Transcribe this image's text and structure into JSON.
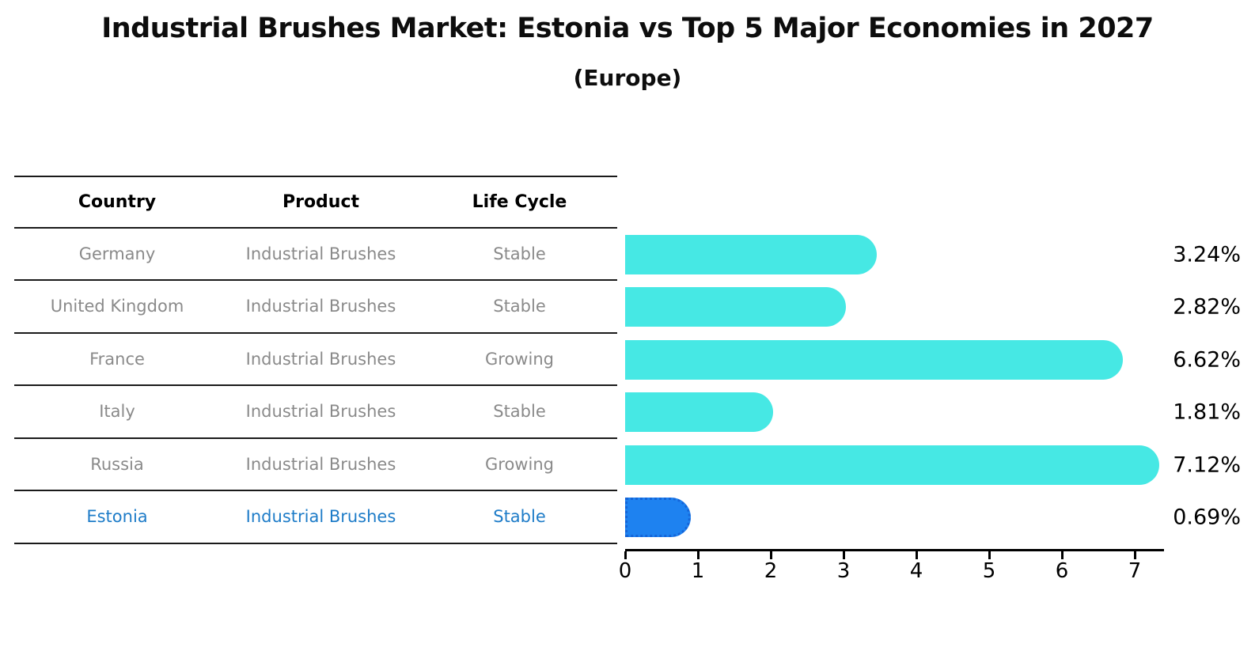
{
  "title": "Industrial Brushes Market: Estonia vs Top 5 Major Economies in 2027",
  "subtitle": "(Europe)",
  "table": {
    "columns": [
      "Country",
      "Product",
      "Life Cycle"
    ],
    "rows": [
      {
        "country": "Germany",
        "product": "Industrial Brushes",
        "life_cycle": "Stable",
        "highlight": false
      },
      {
        "country": "United Kingdom",
        "product": "Industrial Brushes",
        "life_cycle": "Stable",
        "highlight": false
      },
      {
        "country": "France",
        "product": "Industrial Brushes",
        "life_cycle": "Growing",
        "highlight": false
      },
      {
        "country": "Italy",
        "product": "Industrial Brushes",
        "life_cycle": "Stable",
        "highlight": false
      },
      {
        "country": "Russia",
        "product": "Industrial Brushes",
        "life_cycle": "Growing",
        "highlight": false
      },
      {
        "country": "Estonia",
        "product": "Industrial Brushes",
        "life_cycle": "Stable",
        "highlight": true
      }
    ]
  },
  "chart_data": {
    "type": "bar",
    "orientation": "horizontal",
    "title": "Industrial Brushes Market: Estonia vs Top 5 Major Economies in 2027",
    "subtitle": "(Europe)",
    "categories": [
      "Germany",
      "United Kingdom",
      "France",
      "Italy",
      "Russia",
      "Estonia"
    ],
    "values": [
      3.24,
      2.82,
      6.62,
      1.81,
      7.12,
      0.69
    ],
    "value_labels": [
      "3.24%",
      "2.82%",
      "6.62%",
      "1.81%",
      "7.12%",
      "0.69%"
    ],
    "x_ticks": [
      0,
      1,
      2,
      3,
      4,
      5,
      6,
      7
    ],
    "xlim": [
      0,
      7.4
    ],
    "grid": false,
    "legend": "none",
    "highlight_index": 5,
    "colors": {
      "bar": "#46e8e4",
      "highlight_bar": "#1e82f0",
      "highlight_bar_border": "#1565d8",
      "highlight_text": "#1e7cc8",
      "table_text": "#8a8a8a",
      "header_text": "#000000",
      "axis": "#000000"
    }
  }
}
